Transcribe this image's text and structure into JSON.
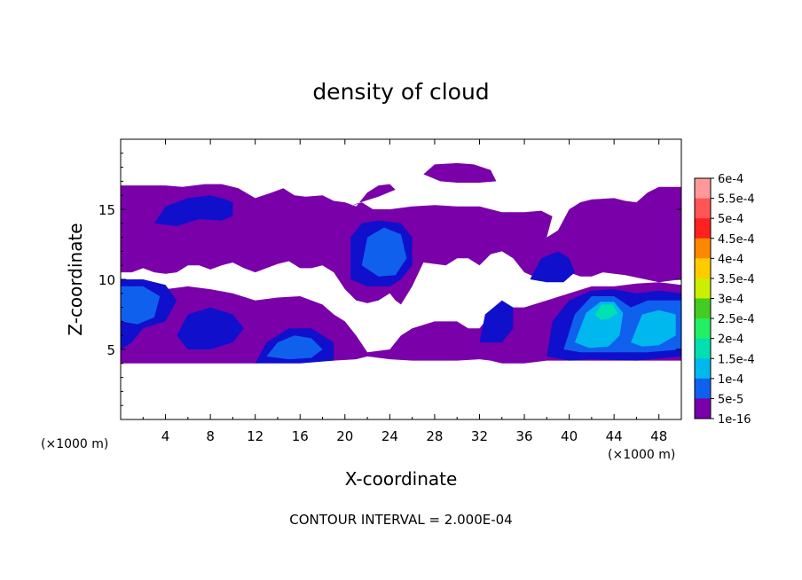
{
  "chart_data": {
    "type": "heatmap",
    "title": "density of cloud",
    "xlabel": "X-coordinate",
    "ylabel": "Z-coordinate",
    "x_unit": "(×1000 m)",
    "z_unit": "(×1000 m)",
    "xlim": [
      0,
      50
    ],
    "ylim": [
      0,
      20
    ],
    "x_ticks": [
      4,
      8,
      12,
      16,
      20,
      24,
      28,
      32,
      36,
      40,
      44,
      48
    ],
    "y_ticks": [
      5,
      10,
      15
    ],
    "colorbar": {
      "labels": [
        "6e-4",
        "5.5e-4",
        "5e-4",
        "4.5e-4",
        "4e-4",
        "3.5e-4",
        "3e-4",
        "2.5e-4",
        "2e-4",
        "1.5e-4",
        "1e-4",
        "5e-5",
        "1e-16"
      ],
      "values": [
        0.0006,
        0.00055,
        0.0005,
        0.00045,
        0.0004,
        0.00035,
        0.0003,
        0.00025,
        0.0002,
        0.00015,
        0.0001,
        5e-05,
        1e-16
      ],
      "colors": [
        "#ff9999",
        "#ff5555",
        "#ff2020",
        "#ff8800",
        "#ffcc00",
        "#ccee00",
        "#44cc22",
        "#22ee66",
        "#00e0b0",
        "#00b8ee",
        "#1060ee",
        "#1010cc",
        "#7a00aa"
      ]
    },
    "footer": "CONTOUR INTERVAL = 2.000E-04",
    "regions": [
      {
        "level": "1e-16",
        "polygon": [
          [
            0,
            10.5
          ],
          [
            0,
            16.7
          ],
          [
            4,
            16.7
          ],
          [
            5.5,
            16.6
          ],
          [
            7.5,
            16.8
          ],
          [
            9,
            16.8
          ],
          [
            10.5,
            16.5
          ],
          [
            12,
            15.8
          ],
          [
            13.5,
            16.2
          ],
          [
            14.5,
            16.5
          ],
          [
            15.5,
            16
          ],
          [
            16.5,
            15.9
          ],
          [
            18,
            16
          ],
          [
            19,
            15.6
          ],
          [
            20,
            15.5
          ],
          [
            21,
            15.2
          ],
          [
            22,
            16.2
          ],
          [
            23,
            16.7
          ],
          [
            24,
            16.8
          ],
          [
            24.5,
            16.4
          ],
          [
            23,
            15.9
          ],
          [
            21,
            15.4
          ],
          [
            20,
            15
          ],
          [
            19.5,
            15.1
          ],
          [
            20.5,
            15.2
          ],
          [
            21.5,
            15.5
          ],
          [
            22.5,
            15
          ],
          [
            24,
            15
          ],
          [
            26,
            15.2
          ],
          [
            28,
            15.3
          ],
          [
            30,
            15.2
          ],
          [
            32,
            15.2
          ],
          [
            34,
            14.8
          ],
          [
            36,
            14.8
          ],
          [
            37.5,
            14.9
          ],
          [
            38.5,
            14.5
          ],
          [
            38,
            13
          ],
          [
            39,
            13.5
          ],
          [
            40,
            15
          ],
          [
            41,
            15.5
          ],
          [
            42,
            15.7
          ],
          [
            44,
            15.8
          ],
          [
            45,
            15.6
          ],
          [
            46,
            15.5
          ],
          [
            47,
            16.2
          ],
          [
            48,
            16.6
          ],
          [
            50,
            16.6
          ],
          [
            50,
            10
          ],
          [
            48,
            9.8
          ],
          [
            45,
            10.3
          ],
          [
            43,
            10.5
          ],
          [
            42,
            10.2
          ],
          [
            41,
            10.2
          ],
          [
            40,
            10.5
          ],
          [
            38,
            9.8
          ],
          [
            36,
            10.5
          ],
          [
            35,
            11.5
          ],
          [
            34,
            12
          ],
          [
            33,
            11.8
          ],
          [
            32,
            11
          ],
          [
            31,
            11.5
          ],
          [
            30,
            11.5
          ],
          [
            29,
            11
          ],
          [
            27,
            11.2
          ],
          [
            26,
            9.5
          ],
          [
            25,
            8.2
          ],
          [
            24.5,
            8.5
          ],
          [
            24,
            9
          ],
          [
            23,
            8.5
          ],
          [
            22,
            8.3
          ],
          [
            21,
            8.5
          ],
          [
            20,
            9.3
          ],
          [
            19,
            10.5
          ],
          [
            18,
            11
          ],
          [
            17,
            10.8
          ],
          [
            16,
            10.8
          ],
          [
            15,
            11.3
          ],
          [
            14,
            11.1
          ],
          [
            13,
            10.8
          ],
          [
            12,
            10.5
          ],
          [
            11,
            10.8
          ],
          [
            10,
            11.2
          ],
          [
            9,
            11
          ],
          [
            8,
            10.7
          ],
          [
            7,
            11
          ],
          [
            6,
            11
          ],
          [
            5,
            10.5
          ],
          [
            4,
            10.4
          ],
          [
            3,
            10.5
          ],
          [
            2,
            10.8
          ],
          [
            1,
            10.5
          ]
        ]
      },
      {
        "level": "1e-16",
        "polygon": [
          [
            0,
            4
          ],
          [
            0,
            10
          ],
          [
            2,
            9.8
          ],
          [
            4,
            9.3
          ],
          [
            6,
            9.5
          ],
          [
            8,
            9.3
          ],
          [
            10,
            9
          ],
          [
            12,
            8.5
          ],
          [
            14,
            8.7
          ],
          [
            16,
            8.8
          ],
          [
            18,
            8.2
          ],
          [
            19,
            7.5
          ],
          [
            20,
            7
          ],
          [
            21,
            6
          ],
          [
            22,
            4.8
          ],
          [
            24,
            5
          ],
          [
            25,
            6
          ],
          [
            26,
            6.5
          ],
          [
            28,
            7
          ],
          [
            30,
            7
          ],
          [
            31,
            6.5
          ],
          [
            32,
            6.5
          ],
          [
            33,
            7.5
          ],
          [
            34,
            8
          ],
          [
            36,
            8
          ],
          [
            38,
            8.5
          ],
          [
            40,
            9
          ],
          [
            42,
            9.5
          ],
          [
            44,
            9.5
          ],
          [
            46,
            9.7
          ],
          [
            48,
            9.8
          ],
          [
            50,
            9.6
          ],
          [
            50,
            4.2
          ],
          [
            46,
            4.2
          ],
          [
            42,
            4.2
          ],
          [
            38,
            4.2
          ],
          [
            36,
            4
          ],
          [
            34,
            4
          ],
          [
            33,
            4.2
          ],
          [
            32,
            4.3
          ],
          [
            30,
            4.2
          ],
          [
            28,
            4.2
          ],
          [
            27,
            4.2
          ],
          [
            26,
            4.2
          ],
          [
            24,
            4.3
          ],
          [
            22,
            4.5
          ],
          [
            21,
            4.3
          ],
          [
            19,
            4.2
          ],
          [
            18,
            4.2
          ],
          [
            16,
            4.2
          ],
          [
            14,
            4.2
          ],
          [
            12,
            4
          ],
          [
            10,
            4
          ],
          [
            8,
            4
          ],
          [
            6,
            4
          ],
          [
            4,
            4
          ],
          [
            2,
            4
          ]
        ]
      },
      {
        "level": "1e-16",
        "polygon": [
          [
            27,
            17.5
          ],
          [
            28,
            18.2
          ],
          [
            30,
            18.3
          ],
          [
            31.5,
            18.2
          ],
          [
            33,
            17.8
          ],
          [
            33.5,
            17
          ],
          [
            32,
            16.9
          ],
          [
            30,
            16.9
          ],
          [
            28.5,
            17
          ]
        ]
      },
      {
        "level": "5e-5",
        "polygon": [
          [
            3,
            14
          ],
          [
            4,
            15.2
          ],
          [
            6,
            15.8
          ],
          [
            8,
            16
          ],
          [
            9,
            15.8
          ],
          [
            10,
            15.5
          ],
          [
            10,
            14.5
          ],
          [
            9,
            14.2
          ],
          [
            7,
            14.3
          ],
          [
            5,
            13.8
          ]
        ]
      },
      {
        "level": "5e-5",
        "polygon": [
          [
            20.5,
            10
          ],
          [
            20.5,
            13
          ],
          [
            21.5,
            14
          ],
          [
            23,
            14.2
          ],
          [
            25,
            14
          ],
          [
            26,
            13
          ],
          [
            26,
            11
          ],
          [
            25,
            10
          ],
          [
            24,
            9.5
          ],
          [
            22,
            9.5
          ]
        ]
      },
      {
        "level": "5e-5",
        "polygon": [
          [
            36.5,
            10
          ],
          [
            37.5,
            11.5
          ],
          [
            39,
            12
          ],
          [
            40,
            11.5
          ],
          [
            40.5,
            10.5
          ],
          [
            39.5,
            9.8
          ],
          [
            38,
            9.8
          ]
        ]
      },
      {
        "level": "5e-5",
        "polygon": [
          [
            0,
            5
          ],
          [
            0,
            10
          ],
          [
            2,
            10
          ],
          [
            4,
            9.6
          ],
          [
            5,
            8.5
          ],
          [
            4,
            7
          ],
          [
            2,
            6.5
          ],
          [
            1,
            5.5
          ]
        ]
      },
      {
        "level": "5e-5",
        "polygon": [
          [
            5,
            6
          ],
          [
            6,
            7.5
          ],
          [
            8,
            8
          ],
          [
            10,
            7.5
          ],
          [
            11,
            6.5
          ],
          [
            10,
            5.5
          ],
          [
            8,
            5
          ],
          [
            6,
            5
          ]
        ]
      },
      {
        "level": "5e-5",
        "polygon": [
          [
            12,
            4
          ],
          [
            13,
            5.5
          ],
          [
            15,
            6.5
          ],
          [
            17,
            6.5
          ],
          [
            19,
            5.5
          ],
          [
            19,
            4.2
          ],
          [
            16,
            4
          ]
        ]
      },
      {
        "level": "5e-5",
        "polygon": [
          [
            32,
            5.5
          ],
          [
            32.5,
            7.5
          ],
          [
            34,
            8.5
          ],
          [
            35,
            8
          ],
          [
            35,
            6.5
          ],
          [
            34,
            5.5
          ]
        ]
      },
      {
        "level": "5e-5",
        "polygon": [
          [
            38,
            4.5
          ],
          [
            38.5,
            7
          ],
          [
            40,
            8.5
          ],
          [
            42,
            9.2
          ],
          [
            44,
            9.3
          ],
          [
            46,
            9
          ],
          [
            48,
            9.2
          ],
          [
            50,
            9
          ],
          [
            50,
            4.5
          ],
          [
            46,
            4.2
          ],
          [
            42,
            4.3
          ],
          [
            40,
            4.2
          ]
        ]
      },
      {
        "level": "1e-4",
        "polygon": [
          [
            21.5,
            11
          ],
          [
            22,
            13
          ],
          [
            23.5,
            13.7
          ],
          [
            25,
            13.2
          ],
          [
            25.5,
            11.5
          ],
          [
            24.5,
            10.3
          ],
          [
            23,
            10.2
          ]
        ]
      },
      {
        "level": "1e-4",
        "polygon": [
          [
            0,
            7
          ],
          [
            0,
            9.5
          ],
          [
            2,
            9.5
          ],
          [
            3.5,
            8.8
          ],
          [
            3,
            7.3
          ],
          [
            1.5,
            6.8
          ]
        ]
      },
      {
        "level": "1e-4",
        "polygon": [
          [
            13,
            4.5
          ],
          [
            14,
            5.5
          ],
          [
            15.5,
            6
          ],
          [
            17,
            5.8
          ],
          [
            18,
            5
          ],
          [
            17,
            4.4
          ],
          [
            15,
            4.3
          ]
        ]
      },
      {
        "level": "1e-4",
        "polygon": [
          [
            39.5,
            5
          ],
          [
            40.5,
            7.5
          ],
          [
            42,
            8.8
          ],
          [
            44,
            8.8
          ],
          [
            45.5,
            8
          ],
          [
            47,
            8.5
          ],
          [
            50,
            8.5
          ],
          [
            50,
            5
          ],
          [
            47,
            4.8
          ],
          [
            44,
            4.8
          ],
          [
            41,
            4.8
          ]
        ]
      },
      {
        "level": "1.5e-4",
        "polygon": [
          [
            40.5,
            5.5
          ],
          [
            41.5,
            7.6
          ],
          [
            42.8,
            8.4
          ],
          [
            44,
            8.4
          ],
          [
            44.8,
            7.6
          ],
          [
            44.5,
            6
          ],
          [
            43.5,
            5.2
          ],
          [
            41.8,
            5.1
          ]
        ]
      },
      {
        "level": "1.5e-4",
        "polygon": [
          [
            45.5,
            5.5
          ],
          [
            46.5,
            7.5
          ],
          [
            48,
            7.8
          ],
          [
            49.5,
            7.5
          ],
          [
            49.5,
            6
          ],
          [
            48,
            5.3
          ],
          [
            46.5,
            5.2
          ]
        ]
      },
      {
        "level": "2e-4",
        "polygon": [
          [
            42.3,
            7.5
          ],
          [
            42.9,
            8.2
          ],
          [
            43.9,
            8.2
          ],
          [
            44.3,
            7.6
          ],
          [
            43.6,
            7.2
          ],
          [
            42.8,
            7.1
          ]
        ]
      }
    ]
  }
}
